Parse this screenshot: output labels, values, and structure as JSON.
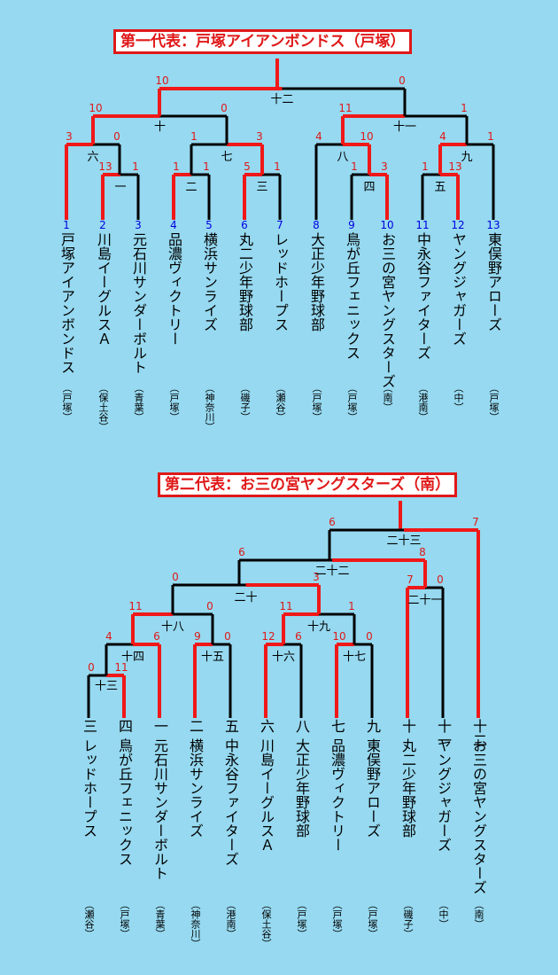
{
  "bracket1": {
    "title": "第一代表：戸塚アイアンボンドス（戸塚）",
    "entries": [
      {
        "seed": "1",
        "name": "戸塚アイアンボンドス",
        "area": "（戸塚）"
      },
      {
        "seed": "2",
        "name": "川島イーグルスＡ",
        "area": "（保土谷）"
      },
      {
        "seed": "3",
        "name": "元石川サンダーボルト",
        "area": "（青葉）"
      },
      {
        "seed": "4",
        "name": "品濃ヴィクトリー",
        "area": "（戸塚）"
      },
      {
        "seed": "5",
        "name": "横浜サンライズ",
        "area": "（神奈川）"
      },
      {
        "seed": "6",
        "name": "丸二少年野球部",
        "area": "（磯子）"
      },
      {
        "seed": "7",
        "name": "レッドホープス",
        "area": "（瀬谷）"
      },
      {
        "seed": "8",
        "name": "大正少年野球部",
        "area": "（戸塚）"
      },
      {
        "seed": "9",
        "name": "鳥が丘フェニックス",
        "area": "（戸塚）"
      },
      {
        "seed": "10",
        "name": "お三の宮ヤングスターズ",
        "area": "（南）"
      },
      {
        "seed": "11",
        "name": "中永谷ファイターズ",
        "area": "（港南）"
      },
      {
        "seed": "12",
        "name": "ヤングジャガーズ",
        "area": "（中）"
      },
      {
        "seed": "13",
        "name": "東俣野アローズ",
        "area": "（戸塚）"
      }
    ],
    "games": [
      {
        "no": "一",
        "left_score": "13",
        "right_score": "1"
      },
      {
        "no": "二",
        "left_score": "1",
        "right_score": "1"
      },
      {
        "no": "三",
        "left_score": "5",
        "right_score": "1"
      },
      {
        "no": "四",
        "left_score": "1",
        "right_score": "3"
      },
      {
        "no": "五",
        "left_score": "1",
        "right_score": "13"
      },
      {
        "no": "六",
        "left_score": "3",
        "right_score": "0"
      },
      {
        "no": "七",
        "left_score": "1",
        "right_score": "3"
      },
      {
        "no": "八",
        "left_score": "4",
        "right_score": "10"
      },
      {
        "no": "九",
        "left_score": "4",
        "right_score": "1"
      },
      {
        "no": "十",
        "left_score": "10",
        "right_score": "0"
      },
      {
        "no": "十一",
        "left_score": "11",
        "right_score": "1"
      },
      {
        "no": "十二",
        "left_score": "10",
        "right_score": "0"
      }
    ]
  },
  "bracket2": {
    "title": "第二代表：お三の宮ヤングスターズ（南）",
    "entries": [
      {
        "seed": "三",
        "name": "レッドホープス",
        "area": "（瀬谷）"
      },
      {
        "seed": "四",
        "name": "鳥が丘フェニックス",
        "area": "（戸塚）"
      },
      {
        "seed": "一",
        "name": "元石川サンダーボルト",
        "area": "（青葉）"
      },
      {
        "seed": "二",
        "name": "横浜サンライズ",
        "area": "（神奈川）"
      },
      {
        "seed": "五",
        "name": "中永谷ファイターズ",
        "area": "（港南）"
      },
      {
        "seed": "六",
        "name": "川島イーグルスＡ",
        "area": "（保土谷）"
      },
      {
        "seed": "八",
        "name": "大正少年野球部",
        "area": "（戸塚）"
      },
      {
        "seed": "七",
        "name": "品濃ヴィクトリー",
        "area": "（戸塚）"
      },
      {
        "seed": "九",
        "name": "東俣野アローズ",
        "area": "（戸塚）"
      },
      {
        "seed": "十",
        "name": "丸二少年野球部",
        "area": "（磯子）"
      },
      {
        "seed": "十一",
        "name": "ヤングジャガーズ",
        "area": "（中）"
      },
      {
        "seed": "十二",
        "name": "お三の宮ヤングスターズ",
        "area": "（南）"
      }
    ],
    "games": [
      {
        "no": "十三",
        "left_score": "0",
        "right_score": "11"
      },
      {
        "no": "十四",
        "left_score": "4",
        "right_score": "6"
      },
      {
        "no": "十五",
        "left_score": "9",
        "right_score": "0"
      },
      {
        "no": "十六",
        "left_score": "12",
        "right_score": "6"
      },
      {
        "no": "十七",
        "left_score": "10",
        "right_score": "0"
      },
      {
        "no": "十八",
        "left_score": "11",
        "right_score": "0"
      },
      {
        "no": "十九",
        "left_score": "11",
        "right_score": "1"
      },
      {
        "no": "二十",
        "left_score": "0",
        "right_score": "3"
      },
      {
        "no": "二十一",
        "left_score": "7",
        "right_score": "0"
      },
      {
        "no": "二十二",
        "left_score": "6",
        "right_score": "8"
      },
      {
        "no": "二十三",
        "left_score": "6",
        "right_score": "7"
      }
    ]
  },
  "colors": {
    "background": "#96d9f0",
    "winner_line": "#f01818",
    "normal_line": "#000000",
    "score": "#e01818",
    "seed": "#0000e0"
  }
}
